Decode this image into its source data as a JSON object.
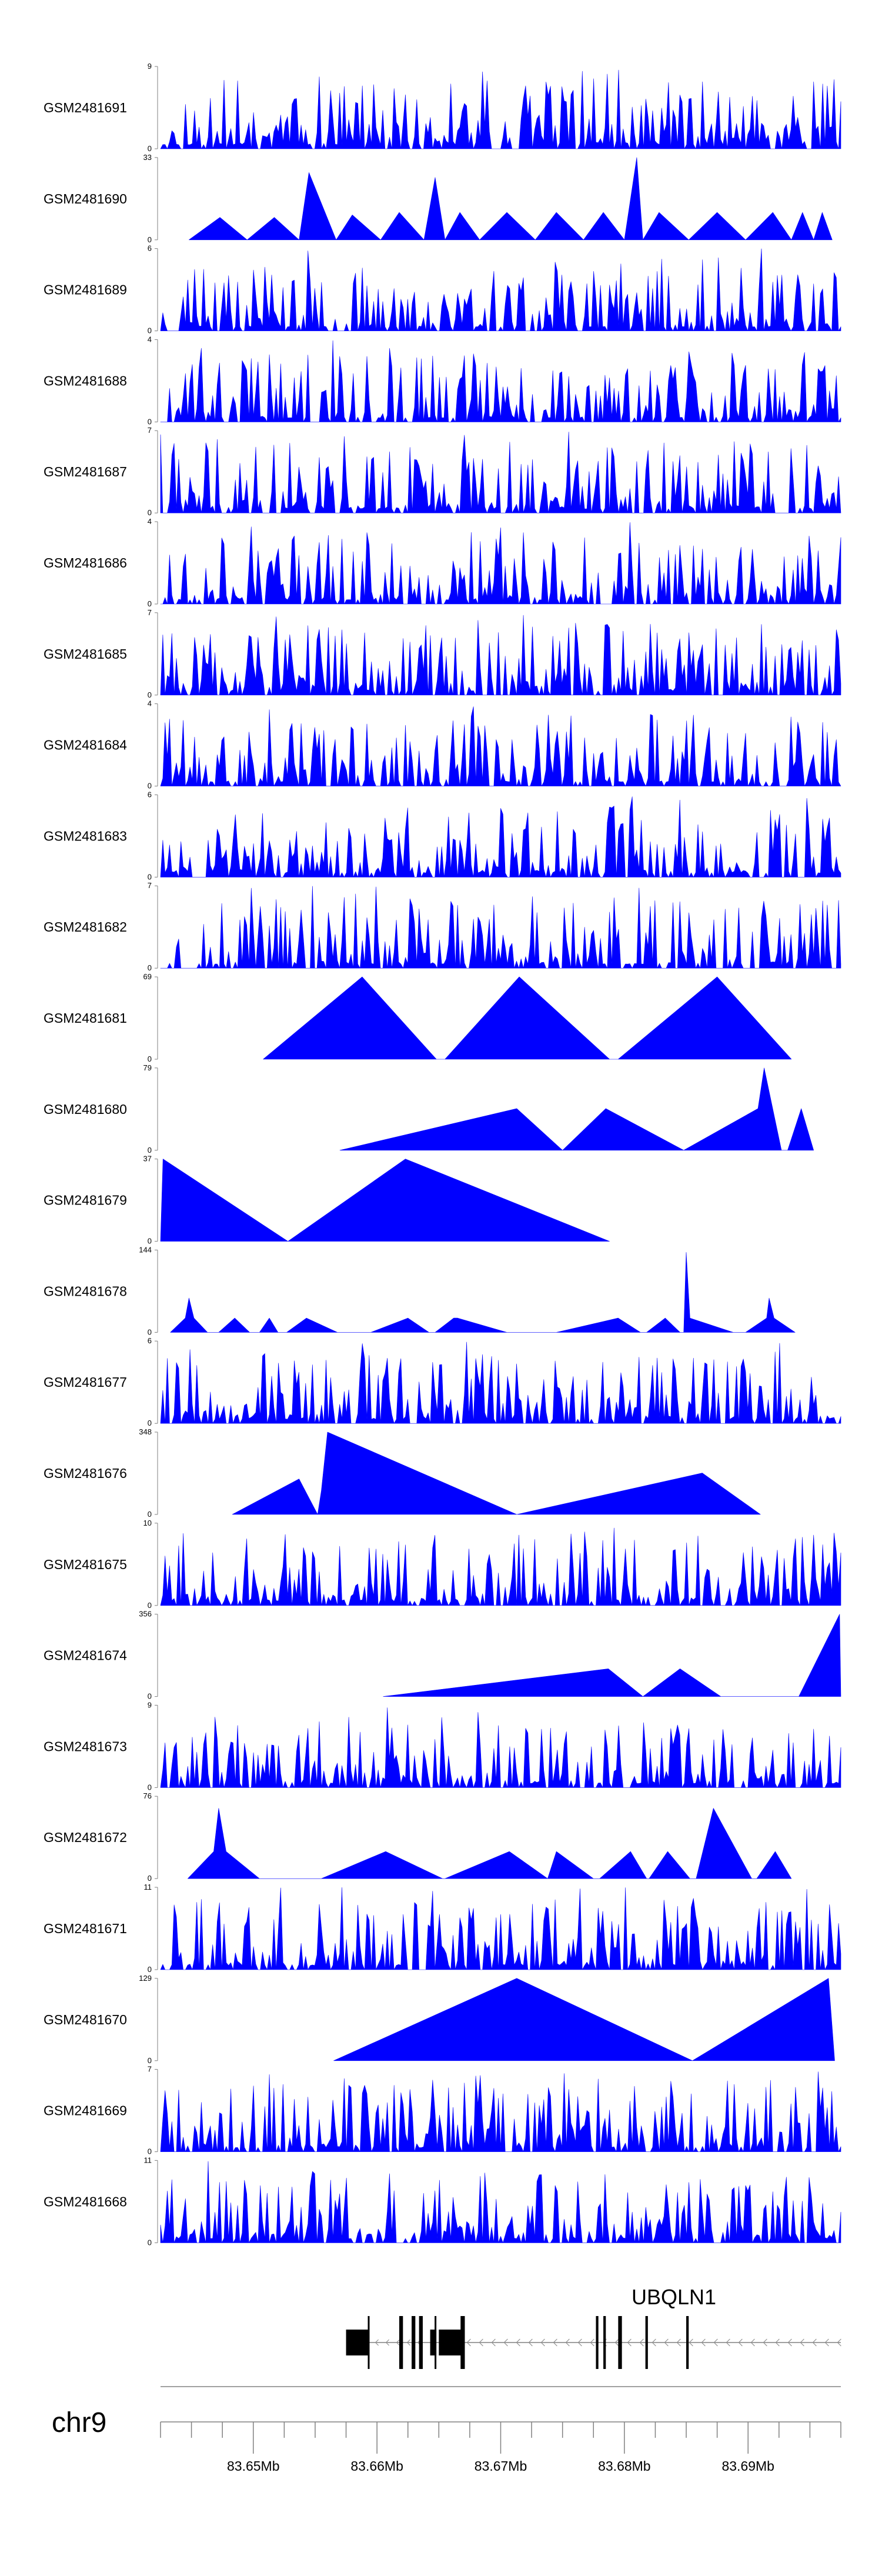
{
  "chart_data": {
    "type": "area",
    "title": "",
    "chromosome": "chr9",
    "gene": "UBQLN1",
    "strand": "-",
    "xlim_mb": [
      83.6425,
      83.6975
    ],
    "x_ticks_mb": [
      83.65,
      83.66,
      83.67,
      83.68,
      83.69
    ],
    "x_tick_labels": [
      "83.65Mb",
      "83.66Mb",
      "83.67Mb",
      "83.68Mb",
      "83.69Mb"
    ],
    "color": "#0000ff",
    "tracks": [
      {
        "name": "GSM2481691",
        "ymax": 9,
        "style": "dense",
        "seed": 11
      },
      {
        "name": "GSM2481690",
        "ymax": 33,
        "style": "points",
        "points": [
          [
            83.6448,
            0
          ],
          [
            83.6473,
            9
          ],
          [
            83.6495,
            0
          ],
          [
            83.6517,
            9
          ],
          [
            83.6537,
            0
          ],
          [
            83.6545,
            27
          ],
          [
            83.6567,
            0
          ],
          [
            83.658,
            10
          ],
          [
            83.6603,
            0
          ],
          [
            83.6618,
            11
          ],
          [
            83.6638,
            0
          ],
          [
            83.6647,
            25
          ],
          [
            83.6655,
            0
          ],
          [
            83.6667,
            11
          ],
          [
            83.6683,
            0
          ],
          [
            83.6705,
            11
          ],
          [
            83.6728,
            0
          ],
          [
            83.6745,
            11
          ],
          [
            83.6767,
            0
          ],
          [
            83.6783,
            11
          ],
          [
            83.68,
            0
          ],
          [
            83.681,
            33
          ],
          [
            83.6815,
            0
          ],
          [
            83.6828,
            11
          ],
          [
            83.6852,
            0
          ],
          [
            83.6875,
            11
          ],
          [
            83.6898,
            0
          ],
          [
            83.692,
            11
          ],
          [
            83.6935,
            0
          ],
          [
            83.6944,
            11
          ],
          [
            83.6953,
            0
          ],
          [
            83.696,
            11
          ],
          [
            83.6968,
            0
          ]
        ]
      },
      {
        "name": "GSM2481689",
        "ymax": 6,
        "style": "dense",
        "seed": 23
      },
      {
        "name": "GSM2481688",
        "ymax": 4,
        "style": "dense",
        "seed": 37
      },
      {
        "name": "GSM2481687",
        "ymax": 7,
        "style": "dense",
        "seed": 41
      },
      {
        "name": "GSM2481686",
        "ymax": 4,
        "style": "dense",
        "seed": 53
      },
      {
        "name": "GSM2481685",
        "ymax": 7,
        "style": "dense",
        "seed": 61
      },
      {
        "name": "GSM2481684",
        "ymax": 4,
        "style": "dense",
        "seed": 71
      },
      {
        "name": "GSM2481683",
        "ymax": 6,
        "style": "dense",
        "seed": 83
      },
      {
        "name": "GSM2481682",
        "ymax": 7,
        "style": "dense",
        "seed": 97
      },
      {
        "name": "GSM2481681",
        "ymax": 69,
        "style": "points",
        "points": [
          [
            83.6508,
            0
          ],
          [
            83.6588,
            69
          ],
          [
            83.6648,
            0
          ],
          [
            83.6655,
            0
          ],
          [
            83.6715,
            69
          ],
          [
            83.6788,
            0
          ],
          [
            83.6795,
            0
          ],
          [
            83.6875,
            69
          ],
          [
            83.6935,
            0
          ]
        ]
      },
      {
        "name": "GSM2481680",
        "ymax": 79,
        "style": "points",
        "points": [
          [
            83.657,
            0
          ],
          [
            83.6713,
            40
          ],
          [
            83.675,
            0
          ],
          [
            83.6785,
            40
          ],
          [
            83.6848,
            0
          ],
          [
            83.6908,
            40
          ],
          [
            83.6913,
            79
          ],
          [
            83.6927,
            0
          ],
          [
            83.6932,
            0
          ],
          [
            83.6943,
            40
          ],
          [
            83.6953,
            0
          ]
        ]
      },
      {
        "name": "GSM2481679",
        "ymax": 37,
        "style": "points",
        "points": [
          [
            83.6425,
            0
          ],
          [
            83.6427,
            37
          ],
          [
            83.6528,
            0
          ],
          [
            83.6623,
            37
          ],
          [
            83.6788,
            0
          ]
        ]
      },
      {
        "name": "GSM2481678",
        "ymax": 144,
        "style": "points",
        "points": [
          [
            83.6433,
            0
          ],
          [
            83.6445,
            25
          ],
          [
            83.6448,
            60
          ],
          [
            83.6452,
            25
          ],
          [
            83.6463,
            0
          ],
          [
            83.6472,
            0
          ],
          [
            83.6485,
            25
          ],
          [
            83.6497,
            0
          ],
          [
            83.6505,
            0
          ],
          [
            83.6513,
            25
          ],
          [
            83.652,
            0
          ],
          [
            83.6527,
            0
          ],
          [
            83.6543,
            25
          ],
          [
            83.6568,
            0
          ],
          [
            83.6595,
            0
          ],
          [
            83.6625,
            25
          ],
          [
            83.6642,
            0
          ],
          [
            83.6647,
            0
          ],
          [
            83.6662,
            25
          ],
          [
            83.6665,
            25
          ],
          [
            83.6705,
            0
          ],
          [
            83.6745,
            0
          ],
          [
            83.6795,
            25
          ],
          [
            83.6813,
            0
          ],
          [
            83.6818,
            0
          ],
          [
            83.6833,
            25
          ],
          [
            83.6845,
            0
          ],
          [
            83.6848,
            0
          ],
          [
            83.685,
            140
          ],
          [
            83.6853,
            25
          ],
          [
            83.6888,
            0
          ],
          [
            83.6898,
            0
          ],
          [
            83.6915,
            25
          ],
          [
            83.6917,
            60
          ],
          [
            83.6921,
            25
          ],
          [
            83.6938,
            0
          ]
        ]
      },
      {
        "name": "GSM2481677",
        "ymax": 6,
        "style": "dense",
        "seed": 109
      },
      {
        "name": "GSM2481676",
        "ymax": 348,
        "style": "points",
        "points": [
          [
            83.6483,
            0
          ],
          [
            83.6537,
            150
          ],
          [
            83.6552,
            0
          ],
          [
            83.6555,
            100
          ],
          [
            83.656,
            348
          ],
          [
            83.6713,
            0
          ],
          [
            83.6863,
            175
          ],
          [
            83.691,
            0
          ]
        ]
      },
      {
        "name": "GSM2481675",
        "ymax": 10,
        "style": "dense",
        "seed": 127
      },
      {
        "name": "GSM2481674",
        "ymax": 356,
        "style": "points",
        "points": [
          [
            83.6605,
            0
          ],
          [
            83.6787,
            120
          ],
          [
            83.6815,
            0
          ],
          [
            83.6845,
            120
          ],
          [
            83.6878,
            0
          ],
          [
            83.6941,
            0
          ],
          [
            83.6974,
            356
          ],
          [
            83.6975,
            0
          ]
        ]
      },
      {
        "name": "GSM2481673",
        "ymax": 9,
        "style": "dense",
        "seed": 131
      },
      {
        "name": "GSM2481672",
        "ymax": 76,
        "style": "points",
        "points": [
          [
            83.6447,
            0
          ],
          [
            83.6468,
            25
          ],
          [
            83.6472,
            65
          ],
          [
            83.6478,
            25
          ],
          [
            83.6505,
            0
          ],
          [
            83.6555,
            0
          ],
          [
            83.6607,
            25
          ],
          [
            83.6653,
            0
          ],
          [
            83.6655,
            0
          ],
          [
            83.6707,
            25
          ],
          [
            83.6738,
            0
          ],
          [
            83.6745,
            25
          ],
          [
            83.6775,
            0
          ],
          [
            83.678,
            0
          ],
          [
            83.6805,
            25
          ],
          [
            83.6818,
            0
          ],
          [
            83.682,
            0
          ],
          [
            83.6835,
            25
          ],
          [
            83.6853,
            0
          ],
          [
            83.6858,
            0
          ],
          [
            83.6872,
            65
          ],
          [
            83.6903,
            0
          ],
          [
            83.6907,
            0
          ],
          [
            83.6922,
            25
          ],
          [
            83.6935,
            0
          ]
        ]
      },
      {
        "name": "GSM2481671",
        "ymax": 11,
        "style": "dense",
        "seed": 149
      },
      {
        "name": "GSM2481670",
        "ymax": 129,
        "style": "points",
        "points": [
          [
            83.6565,
            0
          ],
          [
            83.6713,
            129
          ],
          [
            83.6855,
            0
          ],
          [
            83.6965,
            129
          ],
          [
            83.697,
            0
          ]
        ]
      },
      {
        "name": "GSM2481669",
        "ymax": 7,
        "style": "dense",
        "seed": 163
      },
      {
        "name": "GSM2481668",
        "ymax": 11,
        "style": "dense",
        "seed": 179
      }
    ],
    "exons_mb": [
      [
        83.6575,
        83.6594
      ],
      [
        83.6618,
        83.6621
      ],
      [
        83.6628,
        83.6631
      ],
      [
        83.6634,
        83.6637
      ],
      [
        83.6643,
        83.6648
      ],
      [
        83.665,
        83.6669
      ],
      [
        83.6668,
        83.6671
      ],
      [
        83.6777,
        83.6779
      ],
      [
        83.6783,
        83.6785
      ],
      [
        83.6795,
        83.6798
      ],
      [
        83.6817,
        83.6819
      ],
      [
        83.685,
        83.6852
      ]
    ],
    "intron_span_mb": [
      83.6575,
      83.6975
    ]
  }
}
